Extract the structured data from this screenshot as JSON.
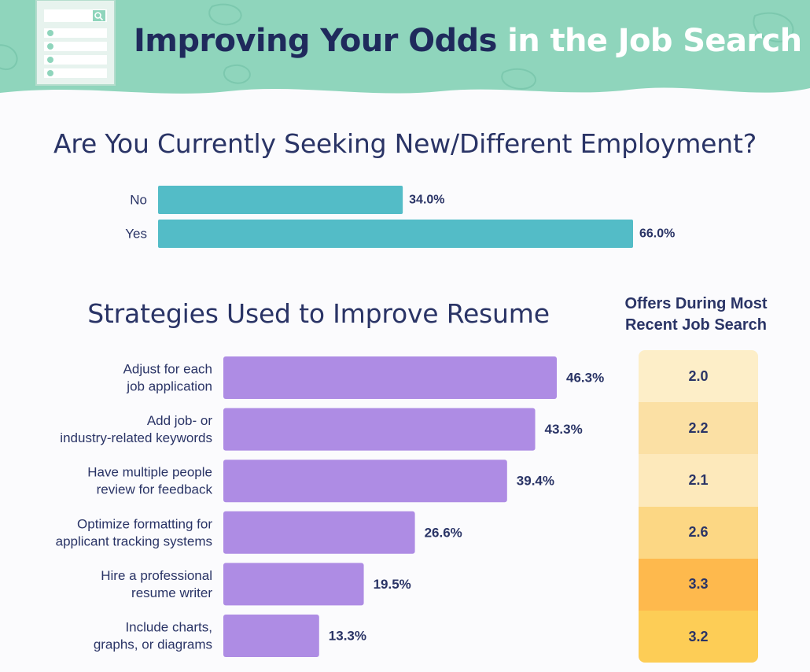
{
  "header": {
    "title_part1": "Improving Your Odds",
    "title_part2": " in the Job Search",
    "background_color": "#8fd5bc",
    "decoration": "resume-document-icon"
  },
  "chart_data": [
    {
      "type": "bar",
      "orientation": "horizontal",
      "title": "Are You Currently Seeking New/Different Employment?",
      "categories": [
        "No",
        "Yes"
      ],
      "values": [
        34.0,
        66.0
      ],
      "value_labels": [
        "34.0%",
        "66.0%"
      ],
      "unit": "%",
      "color": "#53bcc7"
    },
    {
      "type": "bar",
      "orientation": "horizontal",
      "title": "Strategies Used to Improve Resume",
      "categories": [
        [
          "Adjust for each",
          "job application"
        ],
        [
          "Add job- or",
          "industry-related keywords"
        ],
        [
          "Have multiple people",
          "review for feedback"
        ],
        [
          "Optimize formatting for",
          "applicant tracking systems"
        ],
        [
          "Hire a professional",
          "resume writer"
        ],
        [
          "Include charts,",
          "graphs, or diagrams"
        ]
      ],
      "values": [
        46.3,
        43.3,
        39.4,
        26.6,
        19.5,
        13.3
      ],
      "value_labels": [
        "46.3%",
        "43.3%",
        "39.4%",
        "26.6%",
        "19.5%",
        "13.3%"
      ],
      "unit": "%",
      "color": "#ae8ce4"
    },
    {
      "type": "table",
      "title": "Offers During Most Recent Job Search",
      "values": [
        2.0,
        2.2,
        2.1,
        2.6,
        3.3,
        3.2
      ],
      "value_labels": [
        "2.0",
        "2.2",
        "2.1",
        "2.6",
        "3.3",
        "3.2"
      ],
      "cell_colors": [
        "#fdeec8",
        "#fbe0a4",
        "#fde9bb",
        "#fcd784",
        "#feb94d",
        "#fdcd56"
      ]
    }
  ]
}
